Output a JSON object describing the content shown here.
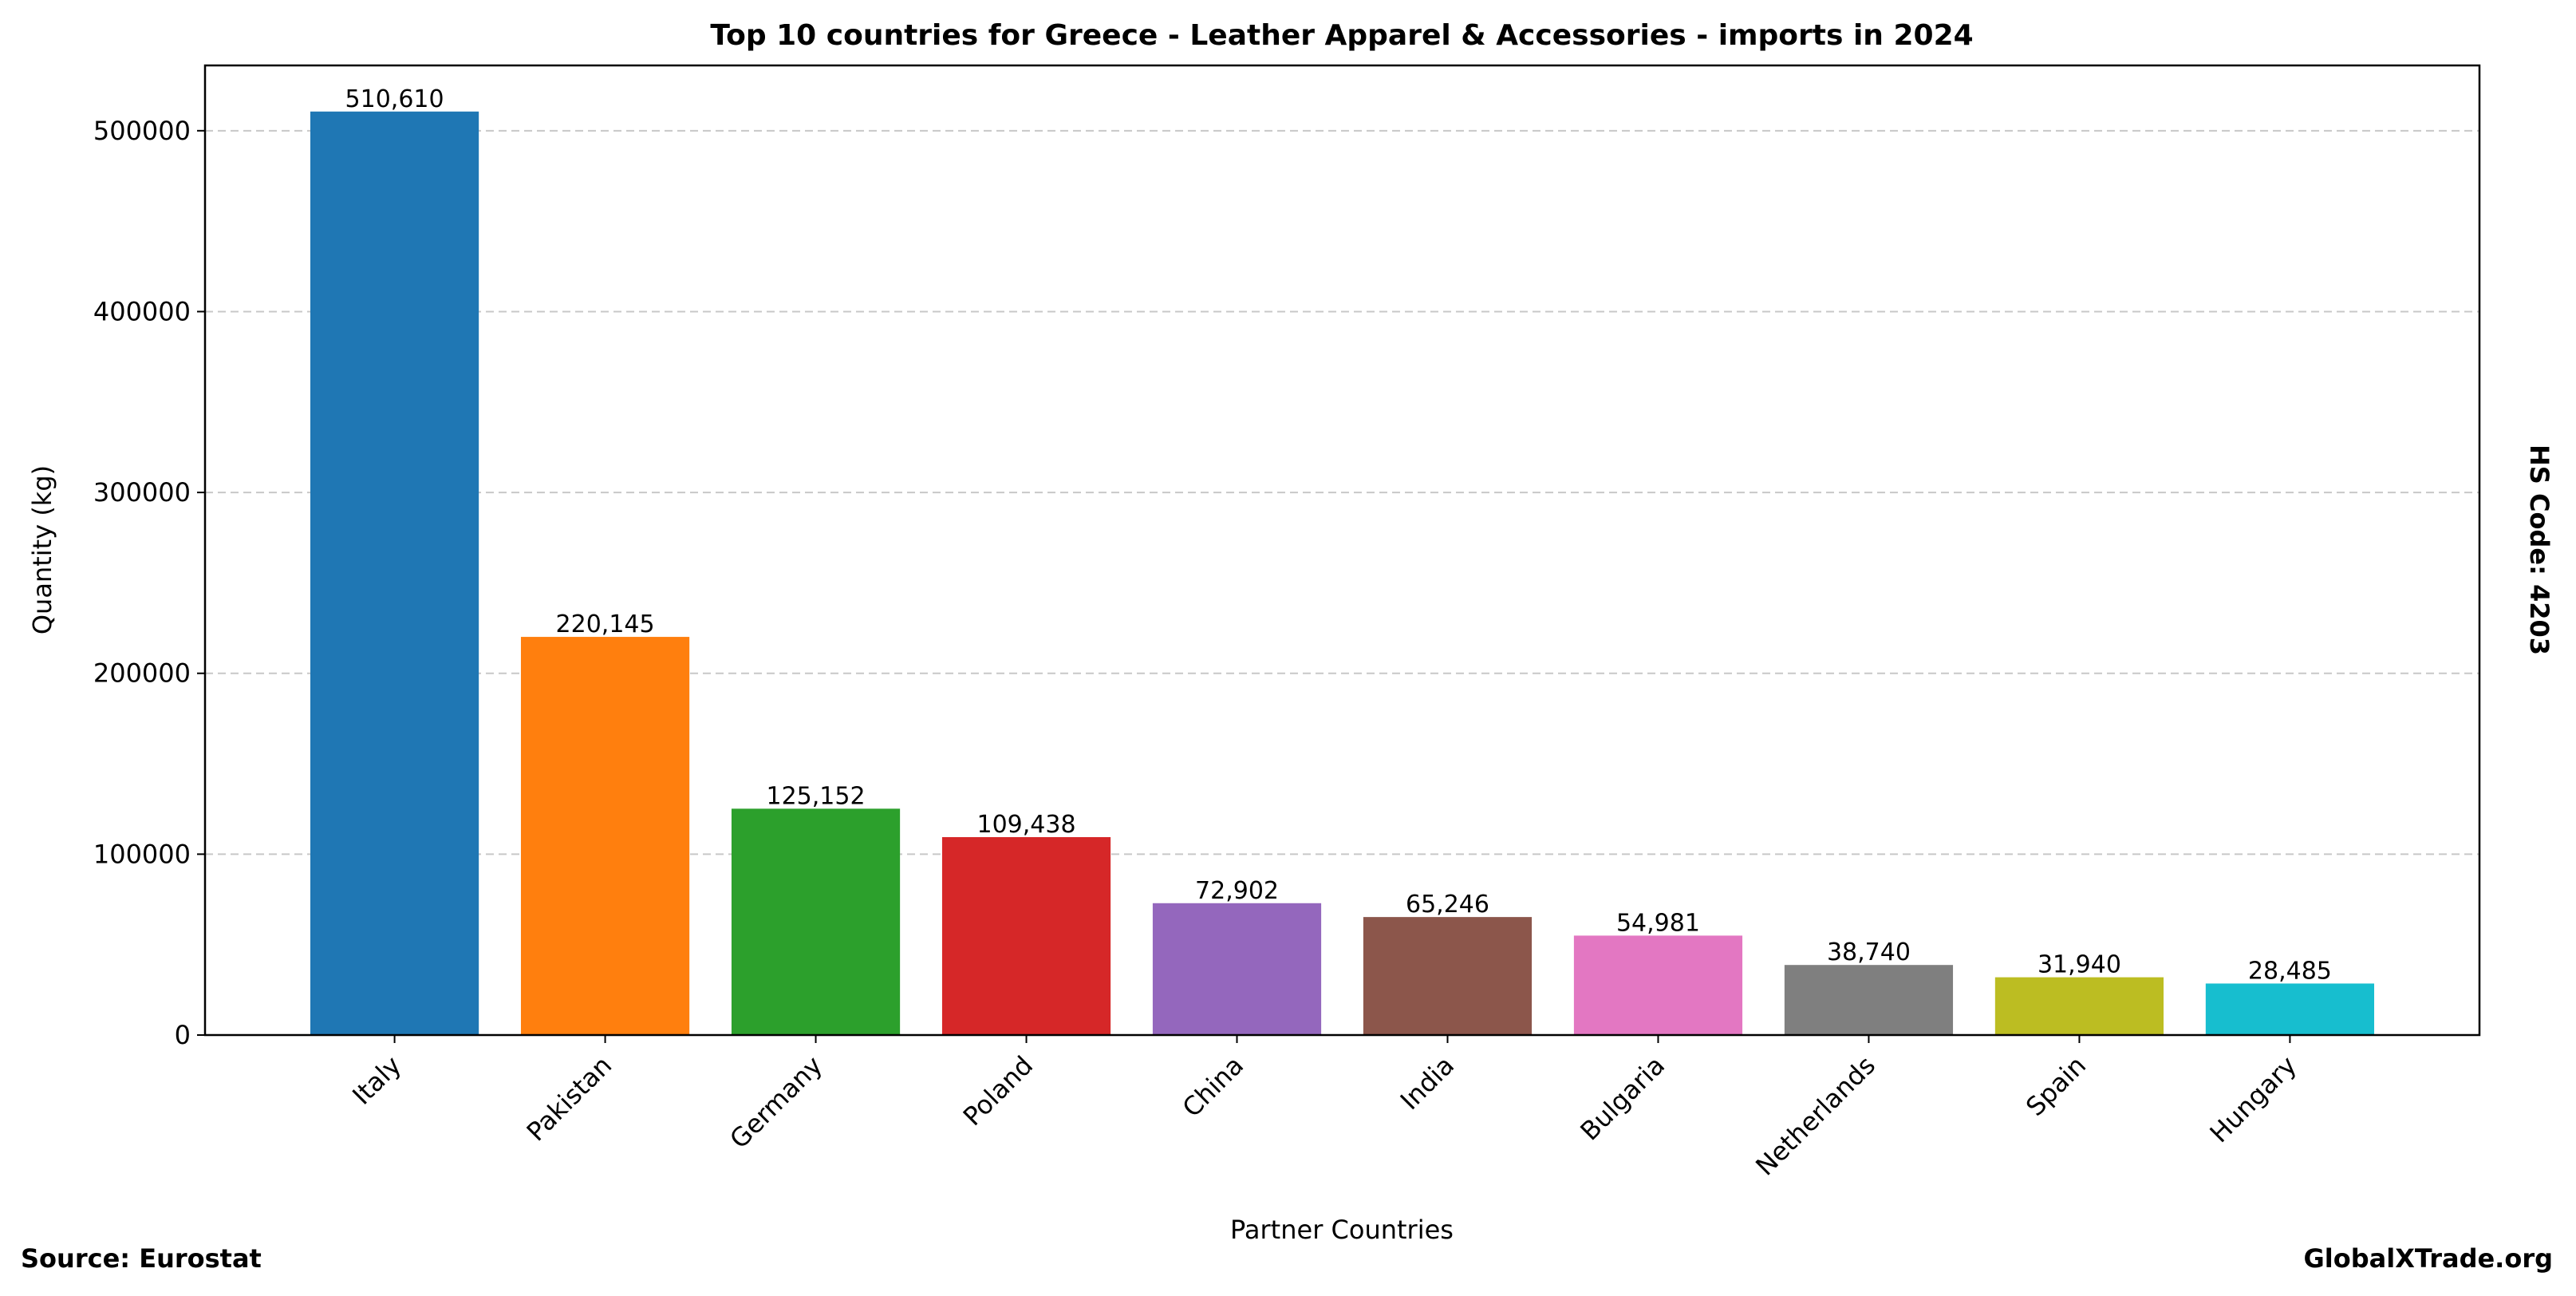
{
  "chart_data": {
    "type": "bar",
    "title": "Top 10 countries for Greece - Leather Apparel & Accessories - imports in 2024",
    "xlabel": "Partner Countries",
    "ylabel": "Quantity (kg)",
    "categories": [
      "Italy",
      "Pakistan",
      "Germany",
      "Poland",
      "China",
      "India",
      "Bulgaria",
      "Netherlands",
      "Spain",
      "Hungary"
    ],
    "values": [
      510610,
      220145,
      125152,
      109438,
      72902,
      65246,
      54981,
      38740,
      31940,
      28485
    ],
    "data_labels": [
      "510,610",
      "220,145",
      "125,152",
      "109,438",
      "72,902",
      "65,246",
      "54,981",
      "38,740",
      "31,940",
      "28,485"
    ],
    "colors": [
      "#1f77b4",
      "#ff7f0e",
      "#2ca02c",
      "#d62728",
      "#9467bd",
      "#8c564b",
      "#e377c2",
      "#7f7f7f",
      "#bcbd22",
      "#17becf"
    ],
    "ylim": [
      0,
      536100
    ],
    "yticks": [
      0,
      100000,
      200000,
      300000,
      400000,
      500000
    ],
    "ytick_labels": [
      "0",
      "100000",
      "200000",
      "300000",
      "400000",
      "500000"
    ],
    "grid": "y-dashed",
    "legend": "none"
  },
  "annotations": {
    "side_label": "HS Code: 4203",
    "source": "Source: Eurostat",
    "brand": "GlobalXTrade.org"
  }
}
